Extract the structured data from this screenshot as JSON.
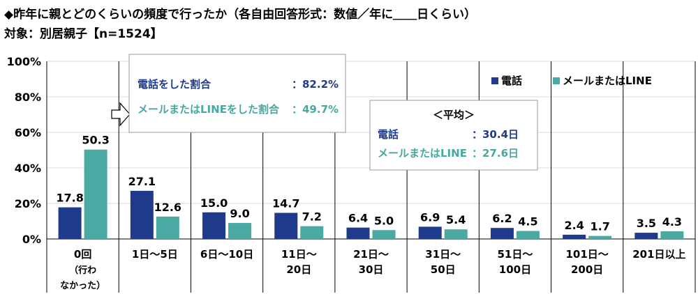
{
  "header": {
    "title": "◆昨年に親とどのくらいの頻度で行ったか（各自由回答形式：数値／年に＿＿日くらい）",
    "subtitle": "対象：別居親子【n=1524】"
  },
  "colors": {
    "phone": "#1f3a8a",
    "mail": "#4aa9a3",
    "phone_text": "#1f3a8a",
    "mail_text": "#46a9a0"
  },
  "legend": {
    "phone": "電話",
    "mail": "メールまたはLINE"
  },
  "share_box": {
    "phone_label": "電話をした割合",
    "phone_value": "：82.2%",
    "mail_label": "メールまたはLINEをした割合",
    "mail_value": "：49.7%"
  },
  "avg_box": {
    "title": "＜平均＞",
    "phone_label": "電話",
    "phone_value": "：30.4日",
    "mail_label": "メールまたはLINE",
    "mail_value": "：27.6日"
  },
  "chart_data": {
    "type": "bar",
    "categories": [
      [
        "0回",
        "（行わ",
        "なかった）"
      ],
      [
        "1日～5日"
      ],
      [
        "6日～10日"
      ],
      [
        "11日～",
        "20日"
      ],
      [
        "21日～",
        "30日"
      ],
      [
        "31日～",
        "50日"
      ],
      [
        "51日～",
        "100日"
      ],
      [
        "101日～",
        "200日"
      ],
      [
        "201日以上"
      ]
    ],
    "series": [
      {
        "name": "電話",
        "values": [
          17.8,
          27.1,
          15.0,
          14.7,
          6.4,
          6.9,
          6.2,
          2.4,
          3.5
        ],
        "labels": [
          "17.8",
          "27.1",
          "15.0",
          "14.7",
          "6.4",
          "6.9",
          "6.2",
          "2.4",
          "3.5"
        ]
      },
      {
        "name": "メールまたはLINE",
        "values": [
          50.3,
          12.6,
          9.0,
          7.2,
          5.0,
          5.4,
          4.5,
          1.7,
          4.3
        ],
        "labels": [
          "50.3",
          "12.6",
          "9.0",
          "7.2",
          "5.0",
          "5.4",
          "4.5",
          "1.7",
          "4.3"
        ]
      }
    ],
    "yticks": [
      "0%",
      "20%",
      "40%",
      "60%",
      "80%",
      "100%"
    ],
    "ylim": [
      0,
      100
    ],
    "grid": true,
    "legend_position": "top-right"
  }
}
